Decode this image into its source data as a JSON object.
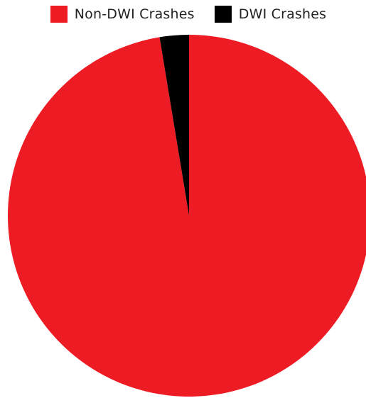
{
  "chart_data": {
    "type": "pie",
    "title": "",
    "legend_position": "top",
    "slices": [
      {
        "label": "Non-DWI Crashes",
        "value": 97.4,
        "color": "#ED1C24"
      },
      {
        "label": "DWI Crashes",
        "value": 2.6,
        "color": "#000000"
      }
    ],
    "start_angle_deg": 0,
    "direction": "clockwise"
  }
}
